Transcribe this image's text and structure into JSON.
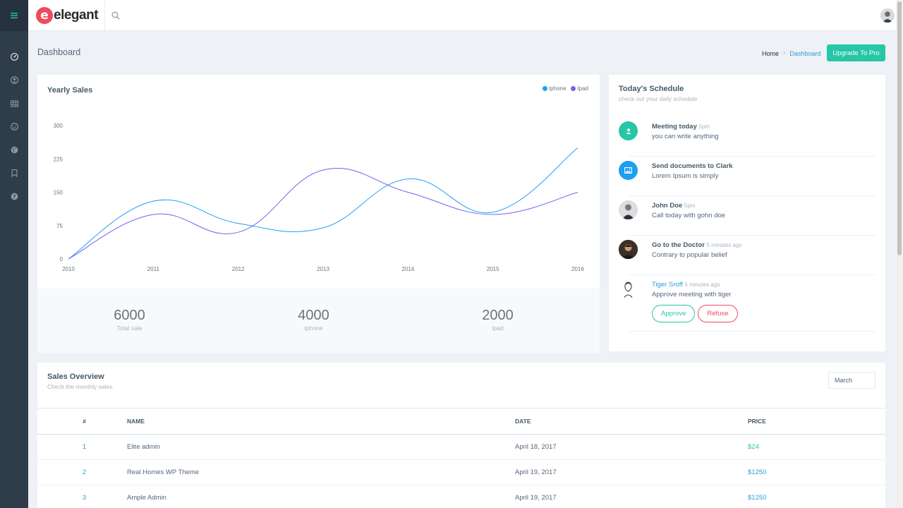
{
  "brand": {
    "logo_letter": "e",
    "name": "elegant"
  },
  "sidebar": {
    "items": [
      "menu-icon",
      "dashboard-icon",
      "user-icon",
      "table-icon",
      "smile-icon",
      "globe-icon",
      "bookmark-icon",
      "help-icon"
    ]
  },
  "header": {
    "title": "Dashboard",
    "breadcrumb_home": "Home",
    "breadcrumb_current": "Dashboard",
    "upgrade_label": "Upgrade To Pro"
  },
  "yearly_sales": {
    "title": "Yearly Sales",
    "legend": [
      {
        "name": "Iphone",
        "color": "#1e9ff2"
      },
      {
        "name": "Ipad",
        "color": "#7460ee"
      }
    ]
  },
  "chart_data": {
    "type": "line",
    "title": "Yearly Sales",
    "x": [
      "2010",
      "2011",
      "2012",
      "2013",
      "2014",
      "2015",
      "2016"
    ],
    "yticks": [
      0,
      75,
      150,
      225,
      300
    ],
    "ylim": [
      0,
      300
    ],
    "series": [
      {
        "name": "Iphone",
        "color": "#1e9ff2",
        "values": [
          0,
          130,
          80,
          70,
          180,
          105,
          250
        ]
      },
      {
        "name": "Ipad",
        "color": "#7460ee",
        "values": [
          0,
          100,
          60,
          200,
          150,
          100,
          150
        ]
      }
    ],
    "legend_position": "top-right"
  },
  "stats": [
    {
      "value": "6000",
      "label": "Total sale"
    },
    {
      "value": "4000",
      "label": "Iphone"
    },
    {
      "value": "2000",
      "label": "Ipad"
    }
  ],
  "schedule": {
    "title": "Today's Schedule",
    "subtitle": "check out your daily schedule",
    "items": [
      {
        "title": "Meeting today",
        "time": "5pm",
        "desc": "you can write anything",
        "icon": "user-icon",
        "color": "#26c6a6"
      },
      {
        "title": "Send documents to Clark",
        "time": "",
        "desc": "Lorem Ipsum is simply",
        "icon": "image-icon",
        "color": "#1e9ff2"
      },
      {
        "title": "John Doe",
        "time": "5pm",
        "desc": "Call today with gohn doe",
        "icon": "avatar",
        "color": "#c9d0d6"
      },
      {
        "title": "Go to the Doctor",
        "time": "5 minutes ago",
        "desc": "Contrary to popular belief",
        "icon": "avatar",
        "color": "#3a3027"
      },
      {
        "title": "Tiger Sroff",
        "time": "5 minutes ago",
        "desc": "Approve meeting with tiger",
        "icon": "avatar",
        "color": "#ffffff"
      }
    ],
    "approve_label": "Approve",
    "refuse_label": "Refuse"
  },
  "overview": {
    "title": "Sales Overview",
    "subtitle": "Check the monthly sales",
    "month": "March",
    "columns": [
      "#",
      "NAME",
      "DATE",
      "PRICE"
    ],
    "rows": [
      {
        "num": "1",
        "name": "Elite admin",
        "date": "April 18, 2017",
        "price": "$24",
        "price_color": "#26c6a6"
      },
      {
        "num": "2",
        "name": "Real Homes WP Theme",
        "date": "April 19, 2017",
        "price": "$1250",
        "price_color": "#2a9fd6"
      },
      {
        "num": "3",
        "name": "Ample Admin",
        "date": "April 19, 2017",
        "price": "$1250",
        "price_color": "#2a9fd6"
      }
    ]
  }
}
